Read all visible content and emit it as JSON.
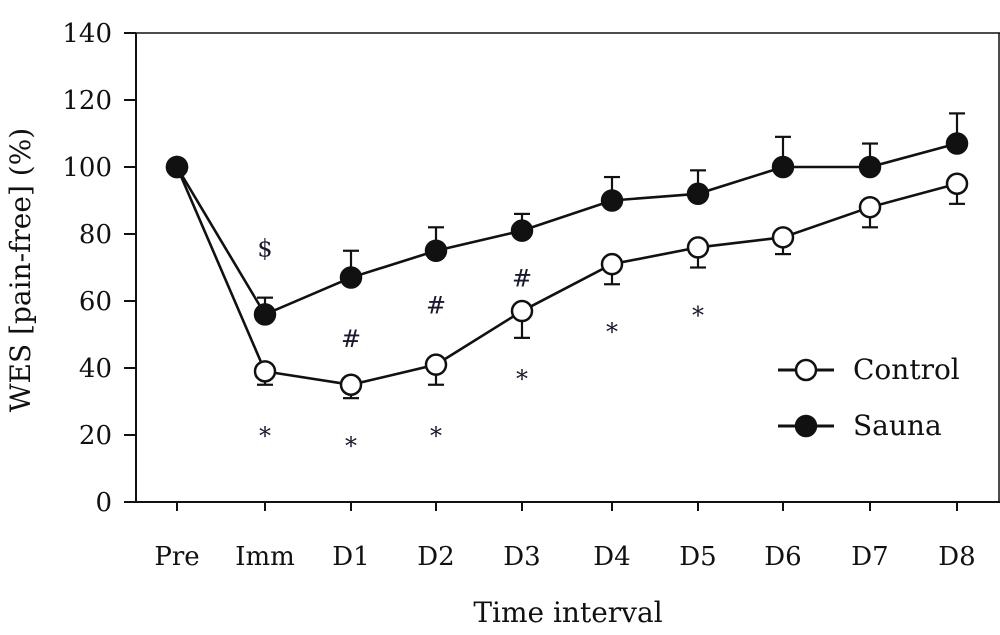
{
  "chart_data": {
    "type": "line",
    "title": "",
    "xlabel": "Time interval",
    "ylabel": "WES [pain-free] (%)",
    "ylim": [
      0,
      140
    ],
    "yticks": [
      0,
      20,
      40,
      60,
      80,
      100,
      120,
      140
    ],
    "categories": [
      "Pre",
      "Imm",
      "D1",
      "D2",
      "D3",
      "D4",
      "D5",
      "D6",
      "D7",
      "D8"
    ],
    "grid": false,
    "legend_position": "right",
    "series": [
      {
        "name": "Control",
        "marker": "open-circle",
        "values": [
          100,
          39,
          35,
          41,
          57,
          71,
          76,
          79,
          88,
          95
        ],
        "error_low": [
          null,
          4,
          4,
          6,
          8,
          6,
          6,
          5,
          6,
          6
        ]
      },
      {
        "name": "Sauna",
        "marker": "filled-circle",
        "values": [
          100,
          56,
          67,
          75,
          81,
          90,
          92,
          100,
          100,
          107
        ],
        "error_high": [
          null,
          5,
          8,
          7,
          5,
          7,
          7,
          9,
          7,
          9
        ]
      }
    ],
    "annotations": [
      {
        "text": "$",
        "category": "Imm",
        "y": 76
      },
      {
        "text": "#",
        "category": "D1",
        "y": 49
      },
      {
        "text": "#",
        "category": "D2",
        "y": 59
      },
      {
        "text": "#",
        "category": "D3",
        "y": 67
      },
      {
        "text": "*",
        "category": "Imm",
        "y": 20
      },
      {
        "text": "*",
        "category": "D1",
        "y": 17
      },
      {
        "text": "*",
        "category": "D2",
        "y": 20
      },
      {
        "text": "*",
        "category": "D3",
        "y": 37
      },
      {
        "text": "*",
        "category": "D4",
        "y": 51
      },
      {
        "text": "*",
        "category": "D5",
        "y": 56
      }
    ]
  }
}
